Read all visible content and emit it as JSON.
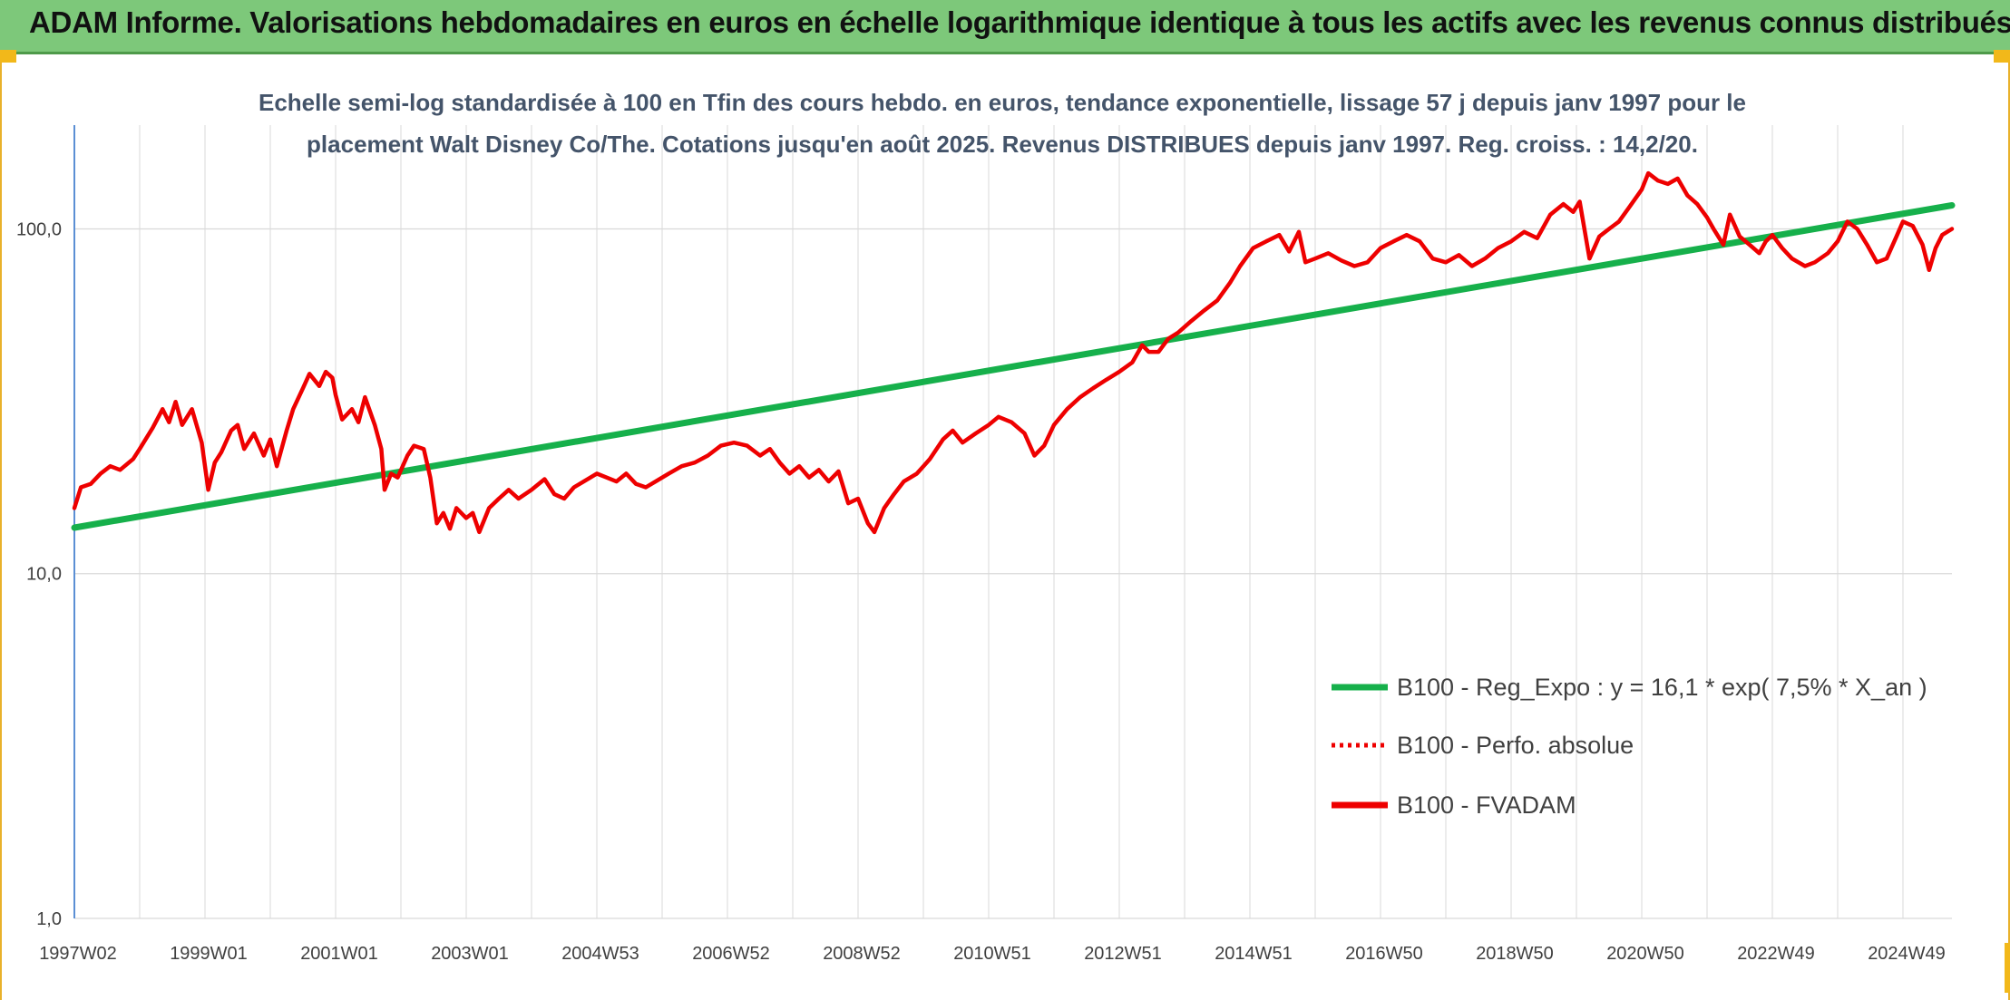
{
  "header": {
    "title": "ADAM Informe. Valorisations hebdomadaires en euros en échelle logarithmique identique à tous les actifs avec les revenus connus distribués"
  },
  "colors": {
    "header_bg": "#7dc87a",
    "trend": "#16b04b",
    "fvadam": "#ee0000",
    "perfo": "#ee0000",
    "accent": "#f2b81a"
  },
  "chart_data": {
    "type": "line",
    "scale": "log",
    "title_line1": "Echelle semi-log standardisée à 100 en Tfin des cours hebdo. en euros, tendance exponentielle, lissage 57 j depuis janv 1997 pour le",
    "title_line2": "placement Walt Disney Co/The. Cotations jusqu'en août 2025. Revenus DISTRIBUES depuis janv 1997. Reg. croiss. : 14,2/20.",
    "ylim": [
      1,
      200
    ],
    "yticks": [
      {
        "value": 1,
        "label": "1,0"
      },
      {
        "value": 10,
        "label": "10,0"
      },
      {
        "value": 100,
        "label": "100,0"
      }
    ],
    "xlim": [
      1997.0,
      2025.75
    ],
    "xticks": [
      {
        "x": 1997.0,
        "label": "1997W02"
      },
      {
        "x": 1999.0,
        "label": "1999W01"
      },
      {
        "x": 2001.0,
        "label": "2001W01"
      },
      {
        "x": 2003.0,
        "label": "2003W01"
      },
      {
        "x": 2005.0,
        "label": "2004W53"
      },
      {
        "x": 2007.0,
        "label": "2006W52"
      },
      {
        "x": 2009.0,
        "label": "2008W52"
      },
      {
        "x": 2011.0,
        "label": "2010W51"
      },
      {
        "x": 2013.0,
        "label": "2012W51"
      },
      {
        "x": 2015.0,
        "label": "2014W51"
      },
      {
        "x": 2017.0,
        "label": "2016W50"
      },
      {
        "x": 2019.0,
        "label": "2018W50"
      },
      {
        "x": 2021.0,
        "label": "2020W50"
      },
      {
        "x": 2023.0,
        "label": "2022W49"
      },
      {
        "x": 2025.0,
        "label": "2024W49"
      }
    ],
    "grid": "vertical and horizontal",
    "legend_position": "bottom-right",
    "series": [
      {
        "name": "B100 - Reg_Expo : y = 16,1 * exp( 7,5% *  X_an )",
        "style": "solid",
        "color": "#16b04b",
        "points": [
          [
            1997.0,
            13.6
          ],
          [
            2025.75,
            117
          ]
        ]
      },
      {
        "name": "B100 - Perfo. absolue",
        "style": "dotted",
        "color": "#ee0000",
        "points": []
      },
      {
        "name": "B100 - FVADAM",
        "style": "solid",
        "color": "#ee0000",
        "points": [
          [
            1997.0,
            15.5
          ],
          [
            1997.1,
            17.8
          ],
          [
            1997.25,
            18.2
          ],
          [
            1997.4,
            19.5
          ],
          [
            1997.55,
            20.5
          ],
          [
            1997.7,
            20
          ],
          [
            1997.9,
            21.5
          ],
          [
            1998.0,
            23
          ],
          [
            1998.2,
            26.5
          ],
          [
            1998.35,
            30
          ],
          [
            1998.45,
            27.5
          ],
          [
            1998.55,
            31.5
          ],
          [
            1998.65,
            27
          ],
          [
            1998.8,
            30
          ],
          [
            1998.95,
            24
          ],
          [
            1999.05,
            17.5
          ],
          [
            1999.15,
            21
          ],
          [
            1999.25,
            22.5
          ],
          [
            1999.4,
            26
          ],
          [
            1999.5,
            27
          ],
          [
            1999.6,
            23
          ],
          [
            1999.75,
            25.5
          ],
          [
            1999.9,
            22
          ],
          [
            2000.0,
            24.5
          ],
          [
            2000.1,
            20.5
          ],
          [
            2000.25,
            26
          ],
          [
            2000.35,
            30
          ],
          [
            2000.5,
            34.5
          ],
          [
            2000.6,
            38
          ],
          [
            2000.75,
            35
          ],
          [
            2000.85,
            38.5
          ],
          [
            2000.95,
            37
          ],
          [
            2001.0,
            33
          ],
          [
            2001.1,
            28
          ],
          [
            2001.25,
            30
          ],
          [
            2001.35,
            27.5
          ],
          [
            2001.45,
            32.5
          ],
          [
            2001.6,
            27
          ],
          [
            2001.7,
            23
          ],
          [
            2001.75,
            17.5
          ],
          [
            2001.85,
            19.5
          ],
          [
            2001.95,
            19
          ],
          [
            2002.1,
            22
          ],
          [
            2002.2,
            23.5
          ],
          [
            2002.35,
            23
          ],
          [
            2002.45,
            19
          ],
          [
            2002.55,
            14
          ],
          [
            2002.65,
            15
          ],
          [
            2002.75,
            13.5
          ],
          [
            2002.85,
            15.5
          ],
          [
            2003.0,
            14.5
          ],
          [
            2003.1,
            15
          ],
          [
            2003.2,
            13.2
          ],
          [
            2003.35,
            15.5
          ],
          [
            2003.5,
            16.5
          ],
          [
            2003.65,
            17.5
          ],
          [
            2003.8,
            16.5
          ],
          [
            2004.0,
            17.5
          ],
          [
            2004.2,
            18.8
          ],
          [
            2004.35,
            17
          ],
          [
            2004.5,
            16.5
          ],
          [
            2004.65,
            17.8
          ],
          [
            2004.8,
            18.5
          ],
          [
            2005.0,
            19.5
          ],
          [
            2005.15,
            19
          ],
          [
            2005.3,
            18.5
          ],
          [
            2005.45,
            19.5
          ],
          [
            2005.6,
            18.2
          ],
          [
            2005.75,
            17.8
          ],
          [
            2005.9,
            18.5
          ],
          [
            2006.1,
            19.5
          ],
          [
            2006.3,
            20.5
          ],
          [
            2006.5,
            21
          ],
          [
            2006.7,
            22
          ],
          [
            2006.9,
            23.5
          ],
          [
            2007.1,
            24
          ],
          [
            2007.3,
            23.5
          ],
          [
            2007.5,
            22
          ],
          [
            2007.65,
            23
          ],
          [
            2007.8,
            21
          ],
          [
            2007.95,
            19.5
          ],
          [
            2008.1,
            20.5
          ],
          [
            2008.25,
            19
          ],
          [
            2008.4,
            20
          ],
          [
            2008.55,
            18.5
          ],
          [
            2008.7,
            19.8
          ],
          [
            2008.85,
            16
          ],
          [
            2009.0,
            16.5
          ],
          [
            2009.15,
            14
          ],
          [
            2009.25,
            13.2
          ],
          [
            2009.4,
            15.5
          ],
          [
            2009.55,
            17
          ],
          [
            2009.7,
            18.5
          ],
          [
            2009.9,
            19.5
          ],
          [
            2010.1,
            21.5
          ],
          [
            2010.3,
            24.5
          ],
          [
            2010.45,
            26
          ],
          [
            2010.6,
            24
          ],
          [
            2010.8,
            25.5
          ],
          [
            2011.0,
            27
          ],
          [
            2011.15,
            28.5
          ],
          [
            2011.35,
            27.5
          ],
          [
            2011.55,
            25.5
          ],
          [
            2011.7,
            22
          ],
          [
            2011.85,
            23.5
          ],
          [
            2012.0,
            27
          ],
          [
            2012.2,
            30
          ],
          [
            2012.4,
            32.5
          ],
          [
            2012.6,
            34.5
          ],
          [
            2012.8,
            36.5
          ],
          [
            2013.0,
            38.5
          ],
          [
            2013.2,
            41
          ],
          [
            2013.35,
            46
          ],
          [
            2013.45,
            44
          ],
          [
            2013.6,
            44
          ],
          [
            2013.75,
            48
          ],
          [
            2013.9,
            50
          ],
          [
            2014.1,
            54
          ],
          [
            2014.3,
            58
          ],
          [
            2014.5,
            62
          ],
          [
            2014.7,
            70
          ],
          [
            2014.85,
            78
          ],
          [
            2015.05,
            88
          ],
          [
            2015.25,
            92
          ],
          [
            2015.45,
            96
          ],
          [
            2015.6,
            86
          ],
          [
            2015.75,
            98
          ],
          [
            2015.85,
            80
          ],
          [
            2016.0,
            82
          ],
          [
            2016.2,
            85
          ],
          [
            2016.4,
            81
          ],
          [
            2016.6,
            78
          ],
          [
            2016.8,
            80
          ],
          [
            2017.0,
            88
          ],
          [
            2017.2,
            92
          ],
          [
            2017.4,
            96
          ],
          [
            2017.6,
            92
          ],
          [
            2017.8,
            82
          ],
          [
            2018.0,
            80
          ],
          [
            2018.2,
            84
          ],
          [
            2018.4,
            78
          ],
          [
            2018.6,
            82
          ],
          [
            2018.8,
            88
          ],
          [
            2019.0,
            92
          ],
          [
            2019.2,
            98
          ],
          [
            2019.4,
            94
          ],
          [
            2019.6,
            110
          ],
          [
            2019.8,
            118
          ],
          [
            2019.95,
            112
          ],
          [
            2020.05,
            120
          ],
          [
            2020.2,
            82
          ],
          [
            2020.35,
            95
          ],
          [
            2020.5,
            100
          ],
          [
            2020.65,
            105
          ],
          [
            2020.8,
            115
          ],
          [
            2021.0,
            130
          ],
          [
            2021.1,
            145
          ],
          [
            2021.25,
            138
          ],
          [
            2021.4,
            135
          ],
          [
            2021.55,
            140
          ],
          [
            2021.7,
            125
          ],
          [
            2021.85,
            118
          ],
          [
            2022.0,
            108
          ],
          [
            2022.1,
            100
          ],
          [
            2022.25,
            90
          ],
          [
            2022.35,
            110
          ],
          [
            2022.5,
            95
          ],
          [
            2022.65,
            90
          ],
          [
            2022.8,
            85
          ],
          [
            2022.9,
            92
          ],
          [
            2023.0,
            96
          ],
          [
            2023.15,
            88
          ],
          [
            2023.3,
            82
          ],
          [
            2023.5,
            78
          ],
          [
            2023.65,
            80
          ],
          [
            2023.85,
            85
          ],
          [
            2024.0,
            92
          ],
          [
            2024.15,
            105
          ],
          [
            2024.3,
            100
          ],
          [
            2024.45,
            90
          ],
          [
            2024.6,
            80
          ],
          [
            2024.75,
            82
          ],
          [
            2024.9,
            95
          ],
          [
            2025.0,
            105
          ],
          [
            2025.15,
            102
          ],
          [
            2025.3,
            90
          ],
          [
            2025.4,
            76
          ],
          [
            2025.5,
            88
          ],
          [
            2025.6,
            96
          ],
          [
            2025.75,
            100
          ]
        ]
      }
    ]
  }
}
